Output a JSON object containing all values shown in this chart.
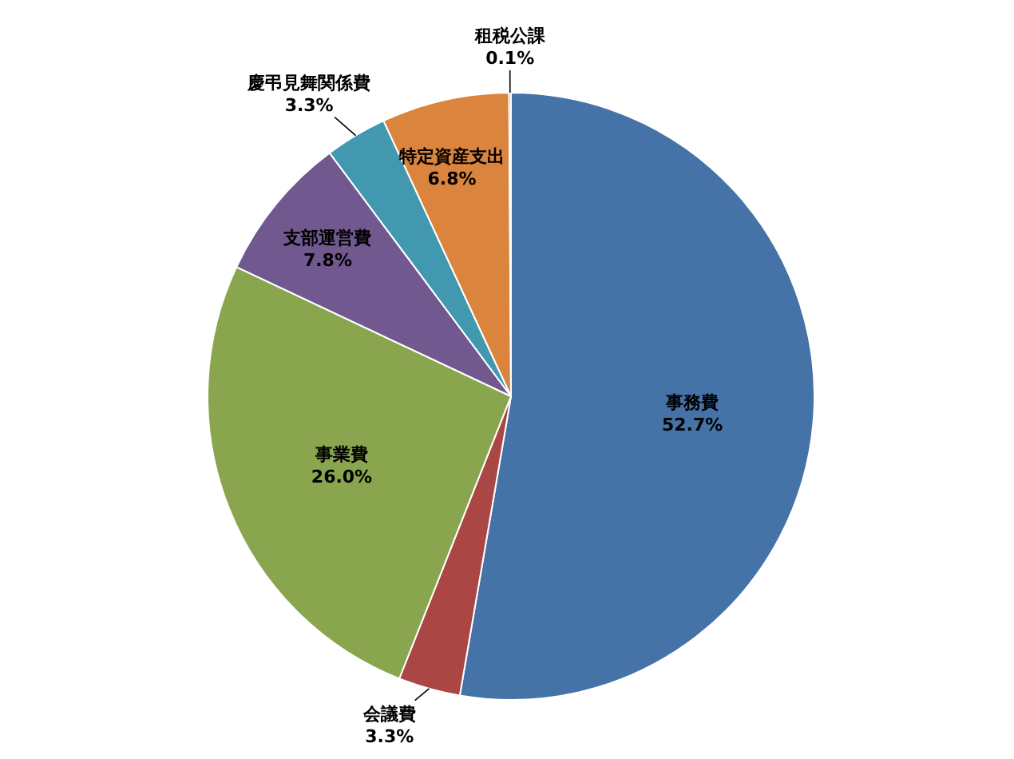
{
  "chart_data": {
    "type": "pie",
    "categories": [
      "事務費",
      "会議費",
      "事業費",
      "支部運営費",
      "慶弔見舞関係費",
      "特定資産支出",
      "租税公課"
    ],
    "values": [
      52.7,
      3.3,
      26.0,
      7.8,
      3.3,
      6.8,
      0.1
    ],
    "colors": [
      "#4572a7",
      "#aa4643",
      "#89a54e",
      "#71588f",
      "#4198af",
      "#db843d",
      "#c0504d"
    ],
    "value_labels": [
      "52.7%",
      "3.3%",
      "26.0%",
      "7.8%",
      "3.3%",
      "6.8%",
      "0.1%"
    ],
    "legend": false
  }
}
